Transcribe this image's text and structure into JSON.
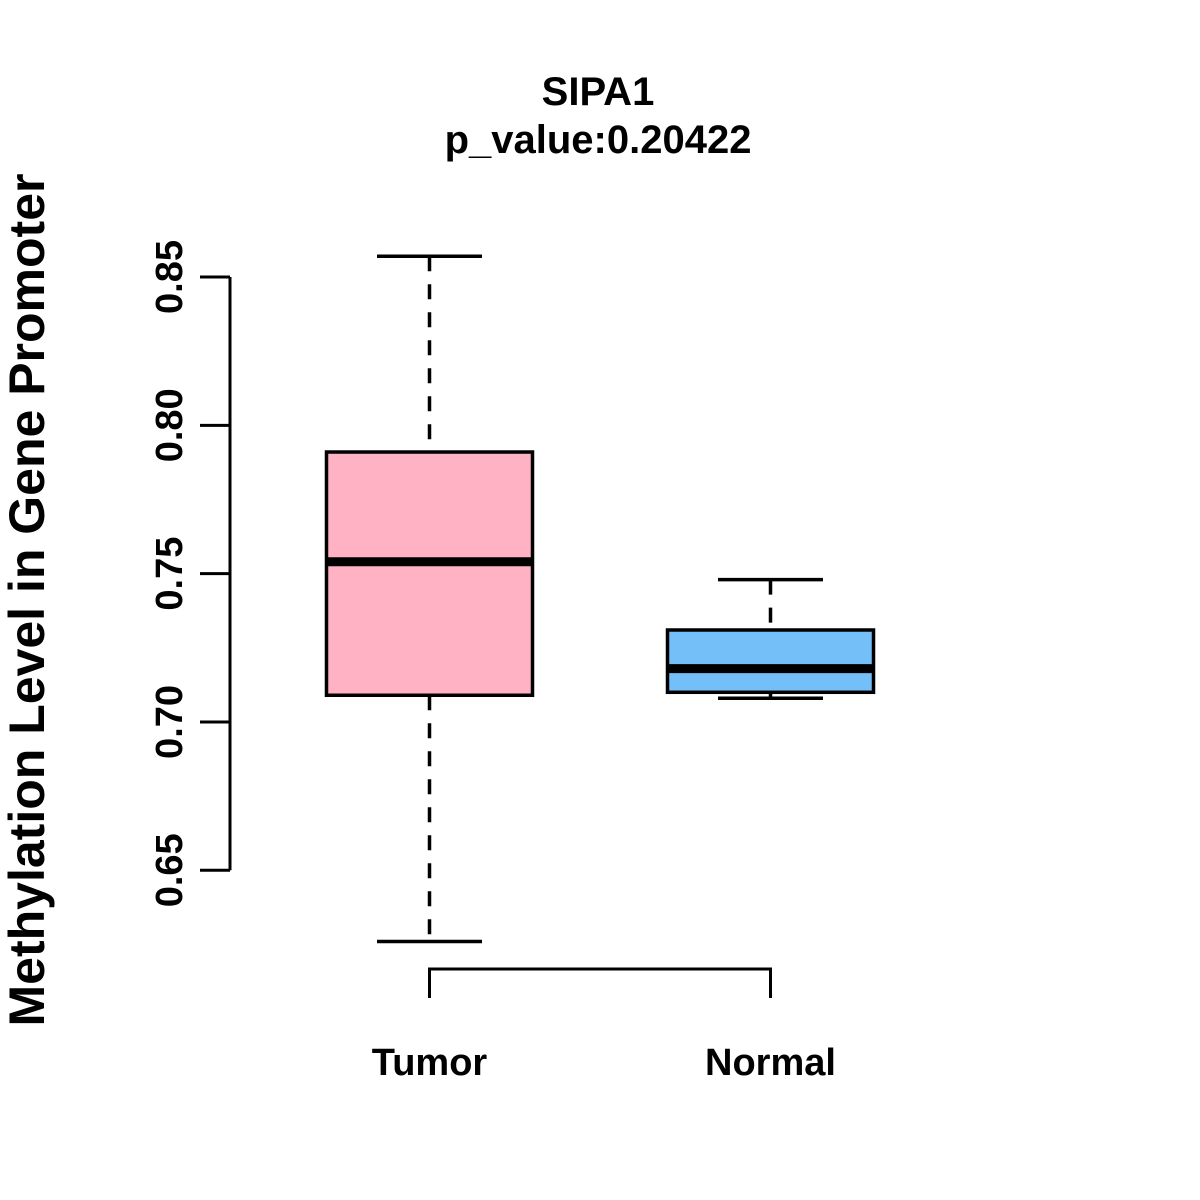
{
  "page": {
    "background_color": "#FFFFFF"
  },
  "chart_data": {
    "type": "boxplot",
    "title": "SIPA1",
    "subtitle": "p_value:0.20422",
    "p_value": "0.20422",
    "ylabel": "Methylation Level in Gene Promoter",
    "xlabel": "",
    "categories": [
      "Tumor",
      "Normal"
    ],
    "series": [
      {
        "name": "Tumor",
        "whisker_low": 0.626,
        "q1": 0.709,
        "median": 0.754,
        "q3": 0.791,
        "whisker_high": 0.857,
        "fill_color": "#FFB2C4"
      },
      {
        "name": "Normal",
        "whisker_low": 0.708,
        "q1": 0.71,
        "median": 0.718,
        "q3": 0.731,
        "whisker_high": 0.748,
        "fill_color": "#74BFF7"
      }
    ],
    "yticks": [
      0.65,
      0.7,
      0.75,
      0.8,
      0.85
    ],
    "ytick_labels": [
      "0.65",
      "0.70",
      "0.75",
      "0.80",
      "0.85"
    ],
    "ylim": [
      0.62,
      0.87
    ],
    "grid": false,
    "legend": "none",
    "line_color": "#000000",
    "whisker_style": "dashed"
  }
}
